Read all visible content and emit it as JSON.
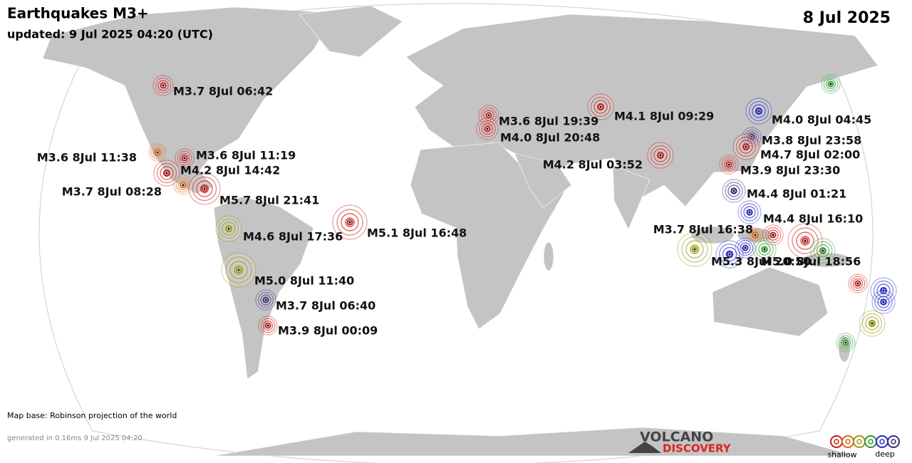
{
  "header": {
    "title": "Earthquakes M3+",
    "updated": "updated:  9 Jul 2025 04:20 (UTC)",
    "date": "8 Jul 2025"
  },
  "quakes": [
    {
      "label": "M3.7  8Jul 06:42"
    },
    {
      "label": "M3.6  8Jul 19:39"
    },
    {
      "label": "M4.0  8Jul 20:48"
    },
    {
      "label": "M4.1  8Jul 09:29"
    },
    {
      "label": "M4.0  8Jul 04:45"
    },
    {
      "label": "M3.8  8Jul 23:58"
    },
    {
      "label": "M4.7  8Jul 02:00"
    },
    {
      "label": "M3.9  8Jul 23:30"
    },
    {
      "label": "M4.4  8Jul 01:21"
    },
    {
      "label": "M4.4  8Jul 16:10"
    },
    {
      "label": "M4.2  8Jul 03:52"
    },
    {
      "label": "M3.6  8Jul 11:38"
    },
    {
      "label": "M3.6  8Jul 11:19"
    },
    {
      "label": "M4.2  8Jul 14:42"
    },
    {
      "label": "M3.7  8Jul 08:28"
    },
    {
      "label": "M5.7  8Jul 21:41"
    },
    {
      "label": "M4.6  8Jul 17:36"
    },
    {
      "label": "M5.1  8Jul 16:48"
    },
    {
      "label": "M5.0  8Jul 11:40"
    },
    {
      "label": "M3.7  8Jul 06:40"
    },
    {
      "label": "M3.9  8Jul 00:09"
    },
    {
      "label": "M3.7  8Jul 16:38"
    },
    {
      "label": "M5.3  8Jul 20:50"
    },
    {
      "label": "M5.0  8Jul 18:56"
    }
  ],
  "footer": {
    "map_base": "Map base: Robinson projection of the world",
    "generated": "generated in 0.16ms  9 Jul 2025 04:20"
  },
  "logo": {
    "line1": "VOLCANO",
    "line2": "DISCOVERY"
  },
  "legend": {
    "shallow": "shallow",
    "deep": "deep"
  }
}
